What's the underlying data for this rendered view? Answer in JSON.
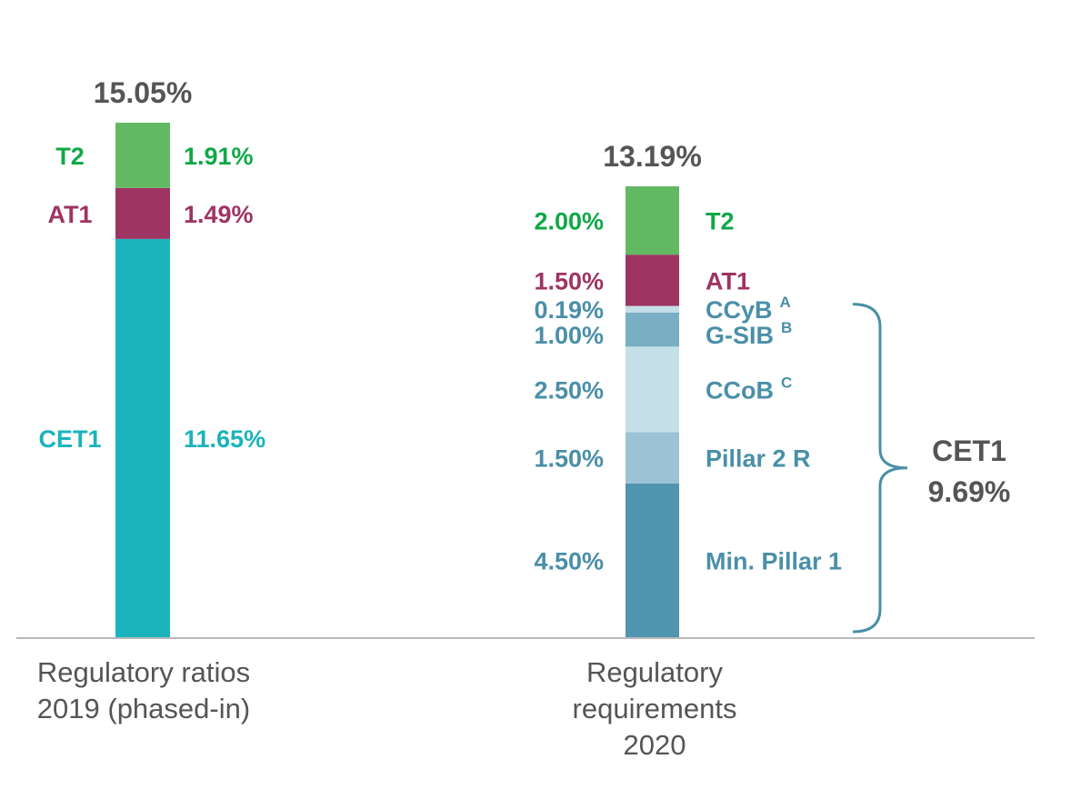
{
  "chart_data": {
    "type": "stacked-bar",
    "ylim": [
      0,
      15.05
    ],
    "grid": false,
    "bars": [
      {
        "category_lines": [
          "Regulatory ratios",
          "2019 (phased-in)"
        ],
        "total_label": "15.05%",
        "total": 15.05,
        "segments": [
          {
            "name": "CET1",
            "value": 11.65,
            "label": "11.65%",
            "color": "#1bb3bc",
            "text_color": "#1bb3bc"
          },
          {
            "name": "AT1",
            "value": 1.49,
            "label": "1.49%",
            "color": "#9e3462",
            "text_color": "#9e3462"
          },
          {
            "name": "T2",
            "value": 1.91,
            "label": "1.91%",
            "color": "#63b963",
            "text_color": "#10a847"
          }
        ]
      },
      {
        "category_lines": [
          "Regulatory",
          "requirements",
          "2020"
        ],
        "total_label": "13.19%",
        "total": 13.19,
        "segments": [
          {
            "name": "Min. Pillar 1",
            "sup": "",
            "value": 4.5,
            "label": "4.50%",
            "color": "#4f95b0",
            "text_color": "#4a8fa8"
          },
          {
            "name": "Pillar 2 R",
            "sup": "",
            "value": 1.5,
            "label": "1.50%",
            "color": "#9cc3d5",
            "text_color": "#4a8fa8"
          },
          {
            "name": "CCoB",
            "sup": "C",
            "value": 2.5,
            "label": "2.50%",
            "color": "#c4dfe8",
            "text_color": "#4a8fa8"
          },
          {
            "name": "G-SIB",
            "sup": "B",
            "value": 1.0,
            "label": "1.00%",
            "color": "#7aaec4",
            "text_color": "#4a8fa8"
          },
          {
            "name": "CCyB",
            "sup": "A",
            "value": 0.19,
            "label": "0.19%",
            "color": "#c4dfe8",
            "text_color": "#4a8fa8"
          },
          {
            "name": "AT1",
            "sup": "",
            "value": 1.5,
            "label": "1.50%",
            "color": "#9e3462",
            "text_color": "#9e3462"
          },
          {
            "name": "T2",
            "sup": "",
            "value": 2.0,
            "label": "2.00%",
            "color": "#63b963",
            "text_color": "#10a847"
          }
        ]
      }
    ],
    "bracket": {
      "label": "CET1",
      "value_label": "9.69%",
      "color": "#4a8fa8"
    }
  }
}
